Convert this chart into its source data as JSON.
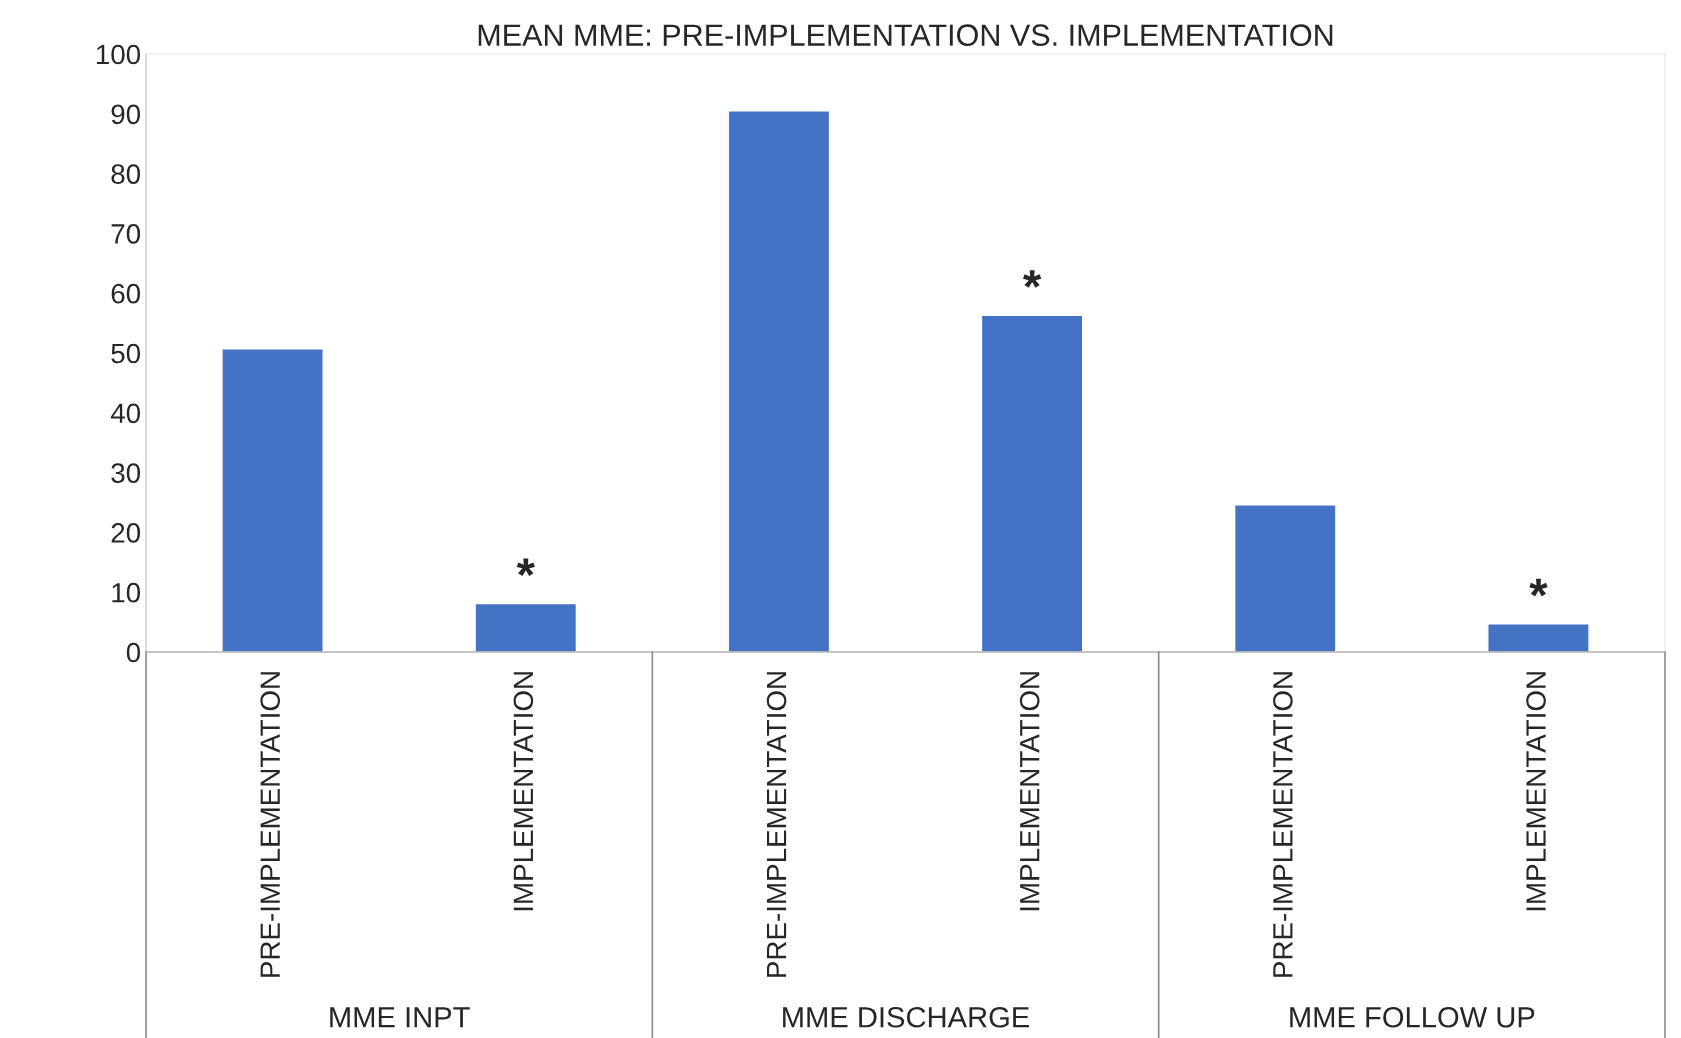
{
  "chart_data": {
    "type": "bar",
    "title": "MEAN MME: PRE-IMPLEMENTATION VS. IMPLEMENTATION",
    "categories": [
      "PRE-IMPLEMENTATION",
      "IMPLEMENTATION",
      "PRE-IMPLEMENTATION",
      "IMPLEMENTATION",
      "PRE-IMPLEMENTATION",
      "IMPLEMENTATION"
    ],
    "values": [
      50.7,
      8.1,
      90.5,
      56.3,
      24.6,
      4.7
    ],
    "value_labels": [
      null,
      "*",
      null,
      "*",
      null,
      "*"
    ],
    "color": "#4472c4",
    "annotations": [
      "MME INPT",
      "MME DISCHARGE",
      "MME FOLLOW UP"
    ],
    "ylim": [
      0,
      100
    ],
    "yticks": [
      0,
      10,
      20,
      30,
      40,
      50,
      60,
      70,
      80,
      90,
      100
    ],
    "grid": false,
    "legend": false
  }
}
